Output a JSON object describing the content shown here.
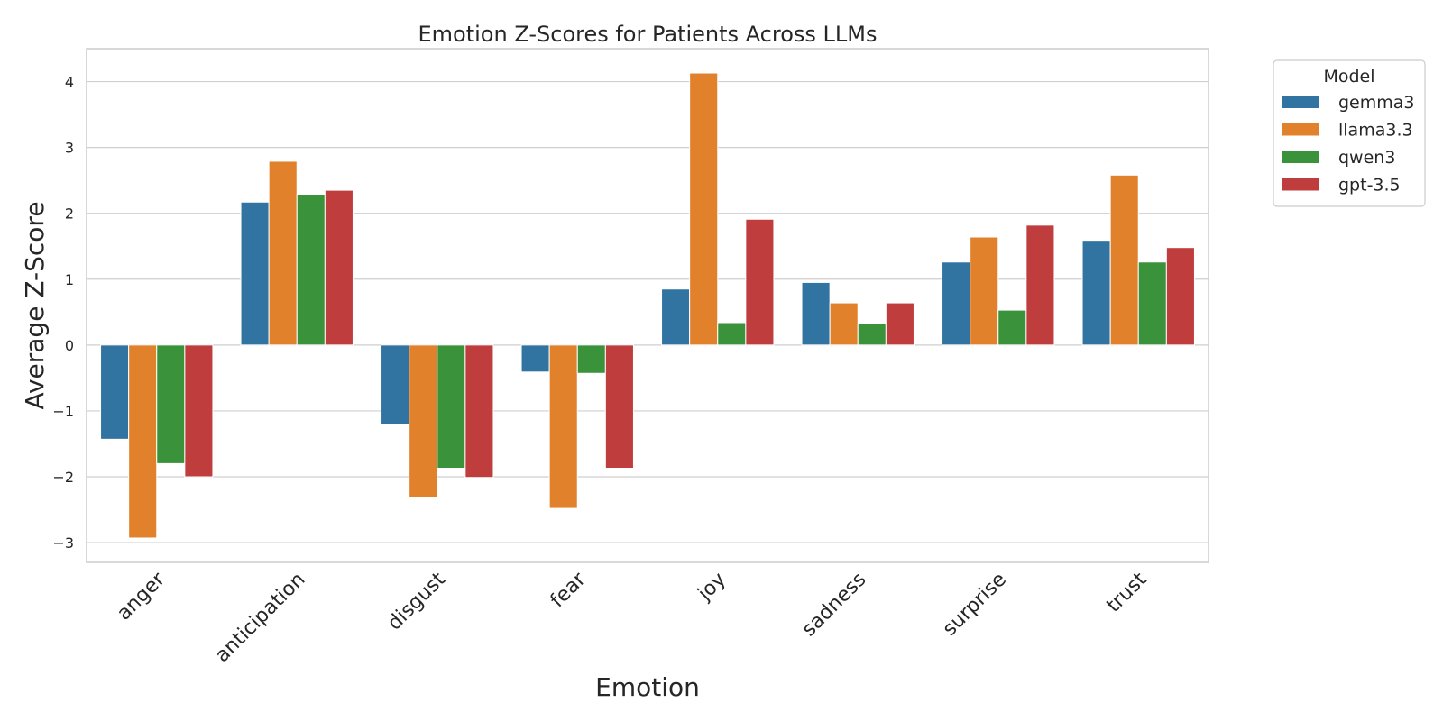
{
  "chart_data": {
    "type": "bar",
    "title": "Emotion Z-Scores for Patients Across LLMs",
    "xlabel": "Emotion",
    "ylabel": "Average Z-Score",
    "categories": [
      "anger",
      "anticipation",
      "disgust",
      "fear",
      "joy",
      "sadness",
      "surprise",
      "trust"
    ],
    "series": [
      {
        "name": "gemma3",
        "color": "#3274a1",
        "values": [
          -1.43,
          2.17,
          -1.2,
          -0.41,
          0.85,
          0.95,
          1.26,
          1.59
        ]
      },
      {
        "name": "llama3.3",
        "color": "#e1812c",
        "values": [
          -2.93,
          2.79,
          -2.32,
          -2.48,
          4.13,
          0.64,
          1.64,
          2.58
        ]
      },
      {
        "name": "qwen3",
        "color": "#3a923a",
        "values": [
          -1.8,
          2.29,
          -1.87,
          -0.43,
          0.34,
          0.32,
          0.53,
          1.26
        ]
      },
      {
        "name": "gpt-3.5",
        "color": "#c03d3e",
        "values": [
          -2.0,
          2.35,
          -2.01,
          -1.87,
          1.91,
          0.64,
          1.82,
          1.48
        ]
      }
    ],
    "yticks": [
      -3,
      -2,
      -1,
      0,
      1,
      2,
      3,
      4
    ],
    "ylim": [
      -3.3,
      4.5
    ],
    "grid": true,
    "legend": {
      "title": "Model",
      "placement": "outside-top-right"
    }
  }
}
